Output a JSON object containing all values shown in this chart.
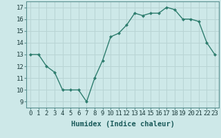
{
  "x": [
    0,
    1,
    2,
    3,
    4,
    5,
    6,
    7,
    8,
    9,
    10,
    11,
    12,
    13,
    14,
    15,
    16,
    17,
    18,
    19,
    20,
    21,
    22,
    23
  ],
  "y": [
    13,
    13,
    12,
    11.5,
    10,
    10,
    10,
    9,
    11,
    12.5,
    14.5,
    14.8,
    15.5,
    16.5,
    16.3,
    16.5,
    16.5,
    17,
    16.8,
    16,
    16,
    15.8,
    14,
    13
  ],
  "line_color": "#2e7d6e",
  "marker": "D",
  "marker_size": 2.0,
  "bg_color": "#cde8e8",
  "grid_color": "#b8d4d4",
  "xlabel": "Humidex (Indice chaleur)",
  "xlim": [
    -0.5,
    23.5
  ],
  "ylim": [
    8.5,
    17.5
  ],
  "yticks": [
    9,
    10,
    11,
    12,
    13,
    14,
    15,
    16,
    17
  ],
  "xticks": [
    0,
    1,
    2,
    3,
    4,
    5,
    6,
    7,
    8,
    9,
    10,
    11,
    12,
    13,
    14,
    15,
    16,
    17,
    18,
    19,
    20,
    21,
    22,
    23
  ],
  "tick_label_fontsize": 6.5,
  "xlabel_fontsize": 7.5,
  "line_width": 1.0
}
